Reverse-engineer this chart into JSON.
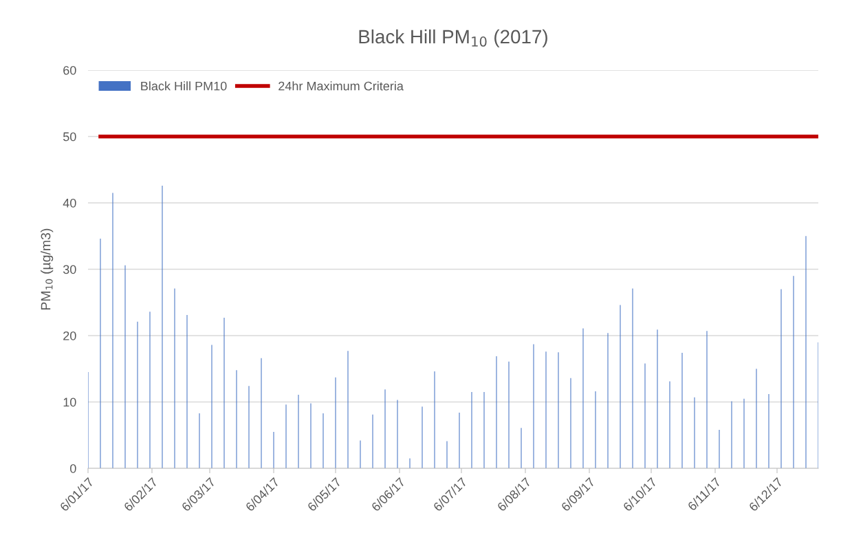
{
  "chart_data": {
    "type": "bar",
    "title": "Black Hill PM$_{10}$ (2017)",
    "ylabel": "PM$_{10}$ (µg/m3)",
    "x": [
      "2017-01-06",
      "2017-01-12",
      "2017-01-18",
      "2017-01-24",
      "2017-01-30",
      "2017-02-05",
      "2017-02-11",
      "2017-02-17",
      "2017-02-23",
      "2017-03-01",
      "2017-03-07",
      "2017-03-13",
      "2017-03-19",
      "2017-03-25",
      "2017-03-31",
      "2017-04-06",
      "2017-04-12",
      "2017-04-18",
      "2017-04-24",
      "2017-04-30",
      "2017-05-06",
      "2017-05-12",
      "2017-05-18",
      "2017-05-24",
      "2017-05-30",
      "2017-06-05",
      "2017-06-11",
      "2017-06-17",
      "2017-06-23",
      "2017-06-29",
      "2017-07-05",
      "2017-07-11",
      "2017-07-17",
      "2017-07-23",
      "2017-07-29",
      "2017-08-04",
      "2017-08-10",
      "2017-08-16",
      "2017-08-22",
      "2017-08-28",
      "2017-09-03",
      "2017-09-09",
      "2017-09-15",
      "2017-09-21",
      "2017-09-27",
      "2017-10-03",
      "2017-10-09",
      "2017-10-15",
      "2017-10-21",
      "2017-10-27",
      "2017-11-02",
      "2017-11-08",
      "2017-11-14",
      "2017-11-20",
      "2017-11-26",
      "2017-12-02",
      "2017-12-08",
      "2017-12-14",
      "2017-12-20",
      "2017-12-26"
    ],
    "series": [
      {
        "name": "Black Hill PM10",
        "color": "#4472c4",
        "values": [
          14.5,
          34.6,
          41.5,
          30.6,
          22.1,
          23.6,
          42.6,
          27.1,
          23.1,
          8.3,
          18.6,
          22.7,
          14.8,
          12.4,
          16.6,
          5.5,
          9.6,
          11.1,
          9.8,
          8.3,
          13.7,
          17.7,
          4.2,
          8.1,
          11.9,
          10.3,
          1.5,
          9.3,
          14.6,
          4.1,
          8.4,
          11.5,
          11.5,
          16.9,
          16.1,
          6.1,
          18.7,
          17.6,
          17.5,
          13.6,
          21.1,
          11.6,
          20.4,
          24.6,
          27.1,
          15.8,
          20.9,
          13.1,
          17.4,
          10.7,
          20.7,
          5.8,
          10.1,
          10.5,
          15.0,
          11.2,
          27.0,
          29.0,
          35.0,
          19.0
        ]
      },
      {
        "name": "24hr Maximum Criteria",
        "type": "line",
        "color": "#c00000",
        "values": [
          null,
          50,
          50,
          50,
          50,
          50,
          50,
          50,
          50,
          50,
          50,
          50,
          50,
          50,
          50,
          50,
          50,
          50,
          50,
          50,
          50,
          50,
          50,
          50,
          50,
          50,
          50,
          50,
          50,
          50,
          50,
          50,
          50,
          50,
          50,
          50,
          50,
          50,
          50,
          50,
          50,
          50,
          50,
          50,
          50,
          50,
          50,
          50,
          50,
          50,
          50,
          50,
          50,
          50,
          50,
          50,
          50,
          50,
          50,
          50
        ]
      }
    ],
    "xlim": [
      "2017-01-06",
      "2017-12-26"
    ],
    "xticks": [
      {
        "value": "2017-01-06",
        "label": "6/01/17"
      },
      {
        "value": "2017-02-06",
        "label": "6/02/17"
      },
      {
        "value": "2017-03-06",
        "label": "6/03/17"
      },
      {
        "value": "2017-04-06",
        "label": "6/04/17"
      },
      {
        "value": "2017-05-06",
        "label": "6/05/17"
      },
      {
        "value": "2017-06-06",
        "label": "6/06/17"
      },
      {
        "value": "2017-07-06",
        "label": "6/07/17"
      },
      {
        "value": "2017-08-06",
        "label": "6/08/17"
      },
      {
        "value": "2017-09-06",
        "label": "6/09/17"
      },
      {
        "value": "2017-10-06",
        "label": "6/10/17"
      },
      {
        "value": "2017-11-06",
        "label": "6/11/17"
      },
      {
        "value": "2017-12-06",
        "label": "6/12/17"
      }
    ],
    "ylim": [
      0,
      60
    ],
    "yticks": [
      0,
      10,
      20,
      30,
      40,
      50,
      60
    ],
    "grid": "y",
    "legend": "top left"
  }
}
